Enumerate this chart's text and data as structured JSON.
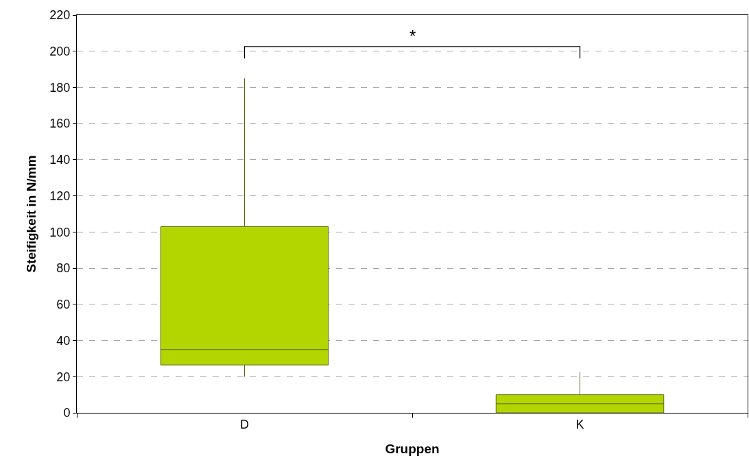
{
  "chart_data": {
    "type": "box",
    "xlabel": "Gruppen",
    "ylabel": "Steifigkeit in N/mm",
    "categories": [
      "D",
      "K"
    ],
    "boxes": [
      {
        "low": 20,
        "q1": 26.5,
        "median": 35,
        "q3": 103,
        "high": 185
      },
      {
        "low": 0,
        "q1": 0,
        "median": 5,
        "q3": 10,
        "high": 22.5
      }
    ],
    "color": "#b3d600",
    "ylim": [
      0,
      220
    ],
    "yticks": [
      0,
      20,
      40,
      60,
      80,
      100,
      120,
      140,
      160,
      180,
      200,
      220
    ],
    "grid": "y",
    "annotations": [
      "*"
    ]
  }
}
